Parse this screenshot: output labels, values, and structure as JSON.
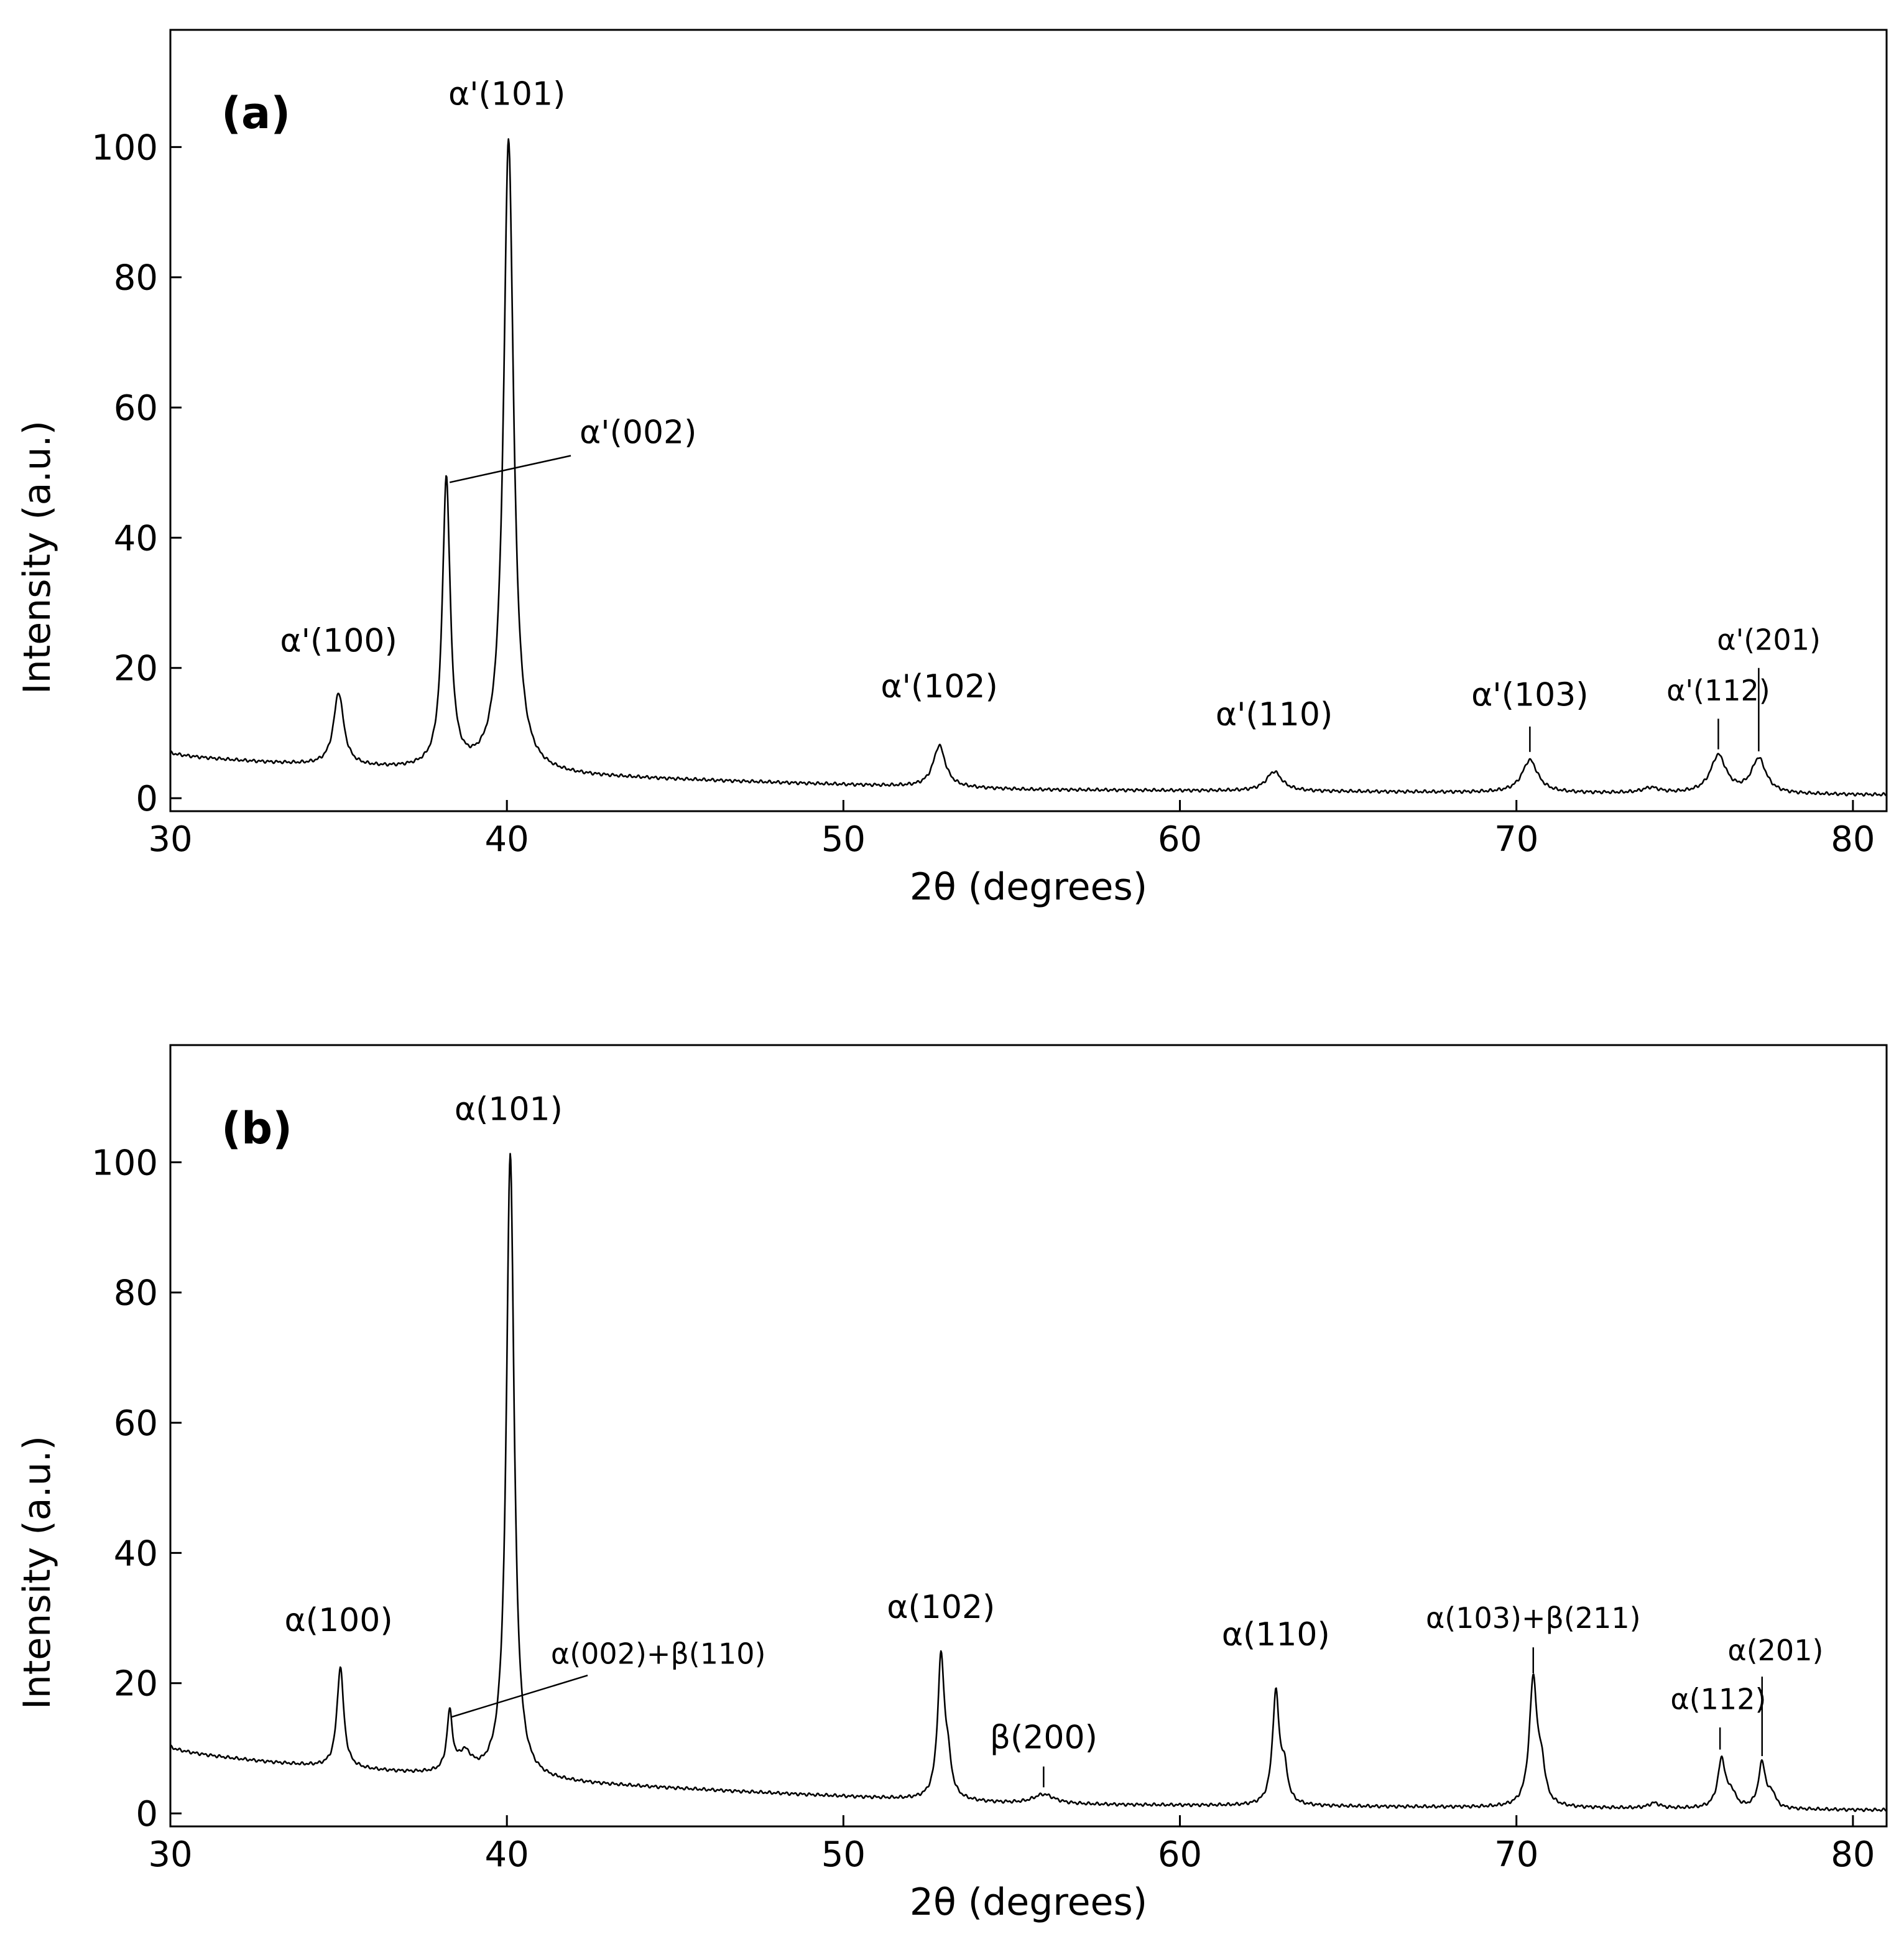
{
  "chart_data": [
    {
      "type": "line",
      "panel_label": "(a)",
      "xlabel": "2θ (degrees)",
      "ylabel": "Intensity (a.u.)",
      "xlim": [
        30,
        81
      ],
      "ylim": [
        -2,
        118
      ],
      "xticks": [
        30,
        40,
        50,
        60,
        70,
        80
      ],
      "yticks": [
        0,
        20,
        40,
        60,
        80,
        100
      ],
      "grid": false,
      "background": {
        "start": 7.0,
        "mid": 1.3,
        "end": 0.5
      },
      "peaks": [
        {
          "x": 35.0,
          "height": 11.2,
          "width": 0.18
        },
        {
          "x": 38.2,
          "height": 44.5,
          "width": 0.14
        },
        {
          "x": 40.05,
          "height": 97.2,
          "width": 0.18
        },
        {
          "x": 52.85,
          "height": 6.4,
          "width": 0.22
        },
        {
          "x": 62.8,
          "height": 3.0,
          "width": 0.28
        },
        {
          "x": 70.4,
          "height": 5.0,
          "width": 0.28
        },
        {
          "x": 74.0,
          "height": 0.8,
          "width": 0.3
        },
        {
          "x": 76.0,
          "height": 5.8,
          "width": 0.28
        },
        {
          "x": 77.2,
          "height": 5.3,
          "width": 0.26
        }
      ],
      "annotations": [
        {
          "text": "α'(101)",
          "x": 40.0,
          "y": 106.5,
          "size": 52
        },
        {
          "text": "α'(002)",
          "x": 43.9,
          "y": 54.5,
          "size": 52,
          "leader": [
            [
              38.3,
              48.5
            ],
            [
              41.9,
              52.6
            ]
          ]
        },
        {
          "text": "α'(100)",
          "x": 35.0,
          "y": 22.5,
          "size": 52
        },
        {
          "text": "α'(102)",
          "x": 52.85,
          "y": 15.5,
          "size": 52
        },
        {
          "text": "α'(110)",
          "x": 62.8,
          "y": 11.2,
          "size": 52
        },
        {
          "text": "α'(103)",
          "x": 70.4,
          "y": 14.2,
          "size": 52,
          "leader": [
            [
              70.4,
              7.1
            ],
            [
              70.4,
              11.0
            ]
          ]
        },
        {
          "text": "α'(112)",
          "x": 76.0,
          "y": 15.0,
          "size": 46,
          "leader": [
            [
              76.0,
              7.5
            ],
            [
              76.0,
              12.2
            ]
          ]
        },
        {
          "text": "α'(201)",
          "x": 77.5,
          "y": 22.8,
          "size": 46,
          "leader": [
            [
              77.2,
              7.2
            ],
            [
              77.2,
              20.0
            ]
          ]
        }
      ]
    },
    {
      "type": "line",
      "panel_label": "(b)",
      "xlabel": "2θ (degrees)",
      "ylabel": "Intensity (a.u.)",
      "xlim": [
        30,
        81
      ],
      "ylim": [
        -2,
        118
      ],
      "xticks": [
        30,
        40,
        50,
        60,
        70,
        80
      ],
      "yticks": [
        0,
        20,
        40,
        60,
        80,
        100
      ],
      "grid": false,
      "background": {
        "start": 10.3,
        "mid": 1.4,
        "end": 0.5
      },
      "peaks": [
        {
          "x": 35.05,
          "height": 15.5,
          "width": 0.12
        },
        {
          "x": 38.3,
          "height": 9.0,
          "width": 0.1
        },
        {
          "x": 38.75,
          "height": 3.0,
          "width": 0.25
        },
        {
          "x": 40.1,
          "height": 96.2,
          "width": 0.14
        },
        {
          "x": 52.9,
          "height": 21.5,
          "width": 0.12
        },
        {
          "x": 53.1,
          "height": 5.0,
          "width": 0.12
        },
        {
          "x": 55.95,
          "height": 1.5,
          "width": 0.4
        },
        {
          "x": 62.85,
          "height": 17.0,
          "width": 0.12
        },
        {
          "x": 63.1,
          "height": 5.0,
          "width": 0.12
        },
        {
          "x": 70.5,
          "height": 19.5,
          "width": 0.14
        },
        {
          "x": 70.75,
          "height": 5.0,
          "width": 0.12
        },
        {
          "x": 74.1,
          "height": 0.8,
          "width": 0.2
        },
        {
          "x": 76.1,
          "height": 7.5,
          "width": 0.14
        },
        {
          "x": 76.4,
          "height": 2.0,
          "width": 0.14
        },
        {
          "x": 77.3,
          "height": 7.0,
          "width": 0.13
        },
        {
          "x": 77.6,
          "height": 2.0,
          "width": 0.12
        }
      ],
      "annotations": [
        {
          "text": "α(101)",
          "x": 40.05,
          "y": 106.5,
          "size": 52
        },
        {
          "text": "α(002)+β(110)",
          "x": 44.5,
          "y": 23.0,
          "size": 46,
          "leader": [
            [
              38.35,
              14.8
            ],
            [
              42.4,
              21.2
            ]
          ]
        },
        {
          "text": "α(100)",
          "x": 35.0,
          "y": 28.0,
          "size": 52
        },
        {
          "text": "α(102)",
          "x": 52.9,
          "y": 30.0,
          "size": 52
        },
        {
          "text": "β(200)",
          "x": 55.95,
          "y": 10.0,
          "size": 52,
          "leader": [
            [
              55.95,
              4.0
            ],
            [
              55.95,
              7.2
            ]
          ]
        },
        {
          "text": "α(110)",
          "x": 62.85,
          "y": 25.8,
          "size": 52
        },
        {
          "text": "α(103)+β(211)",
          "x": 70.5,
          "y": 28.5,
          "size": 46,
          "leader": [
            [
              70.5,
              21.5
            ],
            [
              70.5,
              25.5
            ]
          ]
        },
        {
          "text": "α(112)",
          "x": 76.0,
          "y": 16.0,
          "size": 46,
          "leader": [
            [
              76.05,
              9.8
            ],
            [
              76.05,
              13.2
            ]
          ]
        },
        {
          "text": "α(201)",
          "x": 77.7,
          "y": 23.5,
          "size": 46,
          "leader": [
            [
              77.3,
              8.8
            ],
            [
              77.3,
              21.0
            ]
          ]
        }
      ]
    }
  ]
}
